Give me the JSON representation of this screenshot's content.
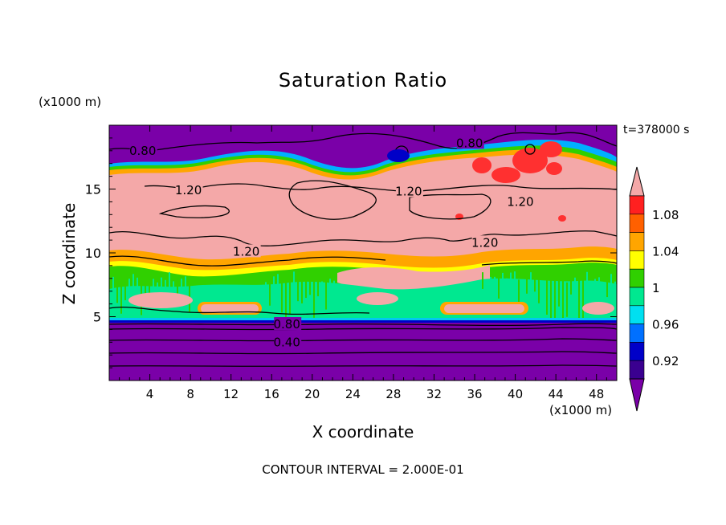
{
  "chart_data": {
    "type": "heatmap",
    "title": "Saturation Ratio",
    "xlabel": "X coordinate",
    "ylabel": "Z coordinate",
    "x_units": "(x1000 m)",
    "y_units": "(x1000 m)",
    "time_label": "t=378000 s",
    "footer": "CONTOUR INTERVAL = 2.000E-01",
    "xlim": [
      0,
      50
    ],
    "ylim": [
      0,
      20
    ],
    "x_ticks": [
      "4",
      "8",
      "12",
      "16",
      "20",
      "24",
      "28",
      "32",
      "36",
      "40",
      "44",
      "48"
    ],
    "x_tick_values": [
      4,
      8,
      12,
      16,
      20,
      24,
      28,
      32,
      36,
      40,
      44,
      48
    ],
    "y_ticks": [
      "5",
      "10",
      "15"
    ],
    "y_tick_values": [
      5,
      10,
      15
    ],
    "colorbar": {
      "labels": [
        "1.08",
        "1.04",
        "1",
        "0.96",
        "0.92"
      ],
      "label_values": [
        1.08,
        1.04,
        1.0,
        0.96,
        0.92
      ],
      "levels": [
        0.9,
        0.92,
        0.94,
        0.96,
        0.98,
        1.0,
        1.02,
        1.04,
        1.06,
        1.08,
        1.1
      ],
      "colors": [
        "#7a00a8",
        "#3a0090",
        "#0000c8",
        "#0070ff",
        "#00e0f0",
        "#00e890",
        "#30d000",
        "#ffff00",
        "#ffa500",
        "#ff6000",
        "#ff2020",
        "#f4a8a8"
      ]
    },
    "contour_labels": [
      {
        "text": "0.80",
        "x": 3.3,
        "z": 18.0
      },
      {
        "text": "0.80",
        "x": 35.5,
        "z": 18.6
      },
      {
        "text": "1.20",
        "x": 7.8,
        "z": 14.9
      },
      {
        "text": "1.20",
        "x": 29.5,
        "z": 14.8
      },
      {
        "text": "1.20",
        "x": 40.5,
        "z": 14.0
      },
      {
        "text": "1.20",
        "x": 13.5,
        "z": 10.1
      },
      {
        "text": "1.20",
        "x": 37.0,
        "z": 10.8
      },
      {
        "text": "0.80",
        "x": 17.5,
        "z": 4.4
      },
      {
        "text": "0.40",
        "x": 17.5,
        "z": 3.0
      }
    ],
    "regions": {
      "upper_dry_layer": {
        "z_range": [
          17.5,
          20
        ],
        "value": 0.8
      },
      "supersaturated_layer": {
        "z_range": [
          9.5,
          16.5
        ],
        "value": 1.2
      },
      "mixed_cloud_layer": {
        "z_range": [
          4.8,
          9.5
        ],
        "value": 1.0
      },
      "lower_dry_layer": {
        "z_range": [
          0,
          4.7
        ],
        "value": 0.4
      }
    }
  }
}
